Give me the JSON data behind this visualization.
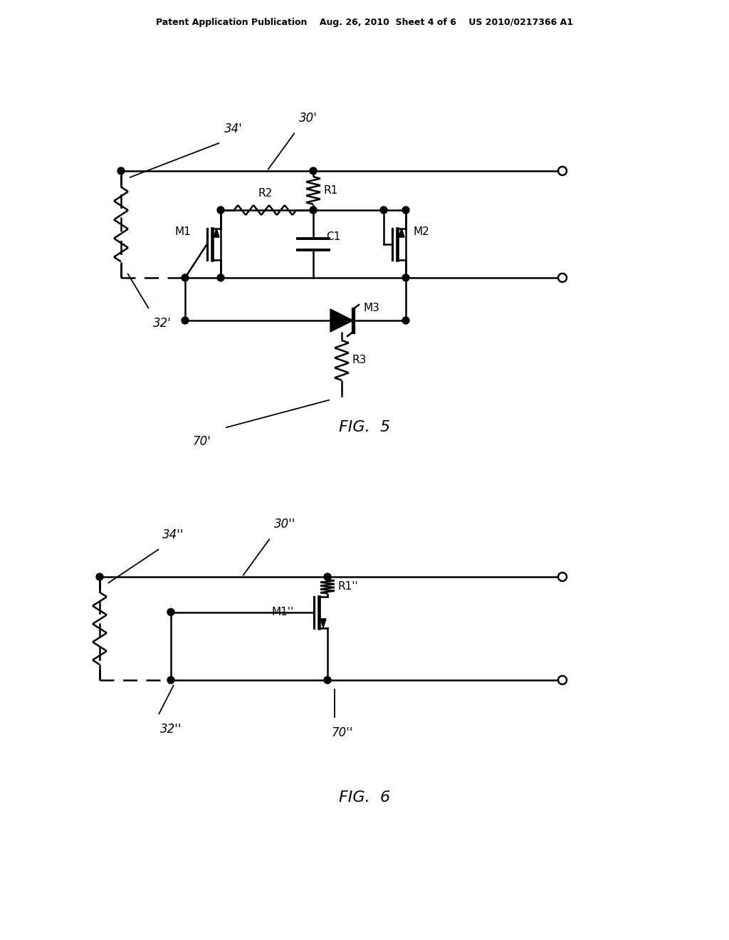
{
  "bg_color": "#ffffff",
  "line_color": "#000000",
  "header_text": "Patent Application Publication    Aug. 26, 2010  Sheet 4 of 6    US 2010/0217366 A1",
  "fig5_title": "FIG.  5",
  "fig6_title": "FIG.  6"
}
